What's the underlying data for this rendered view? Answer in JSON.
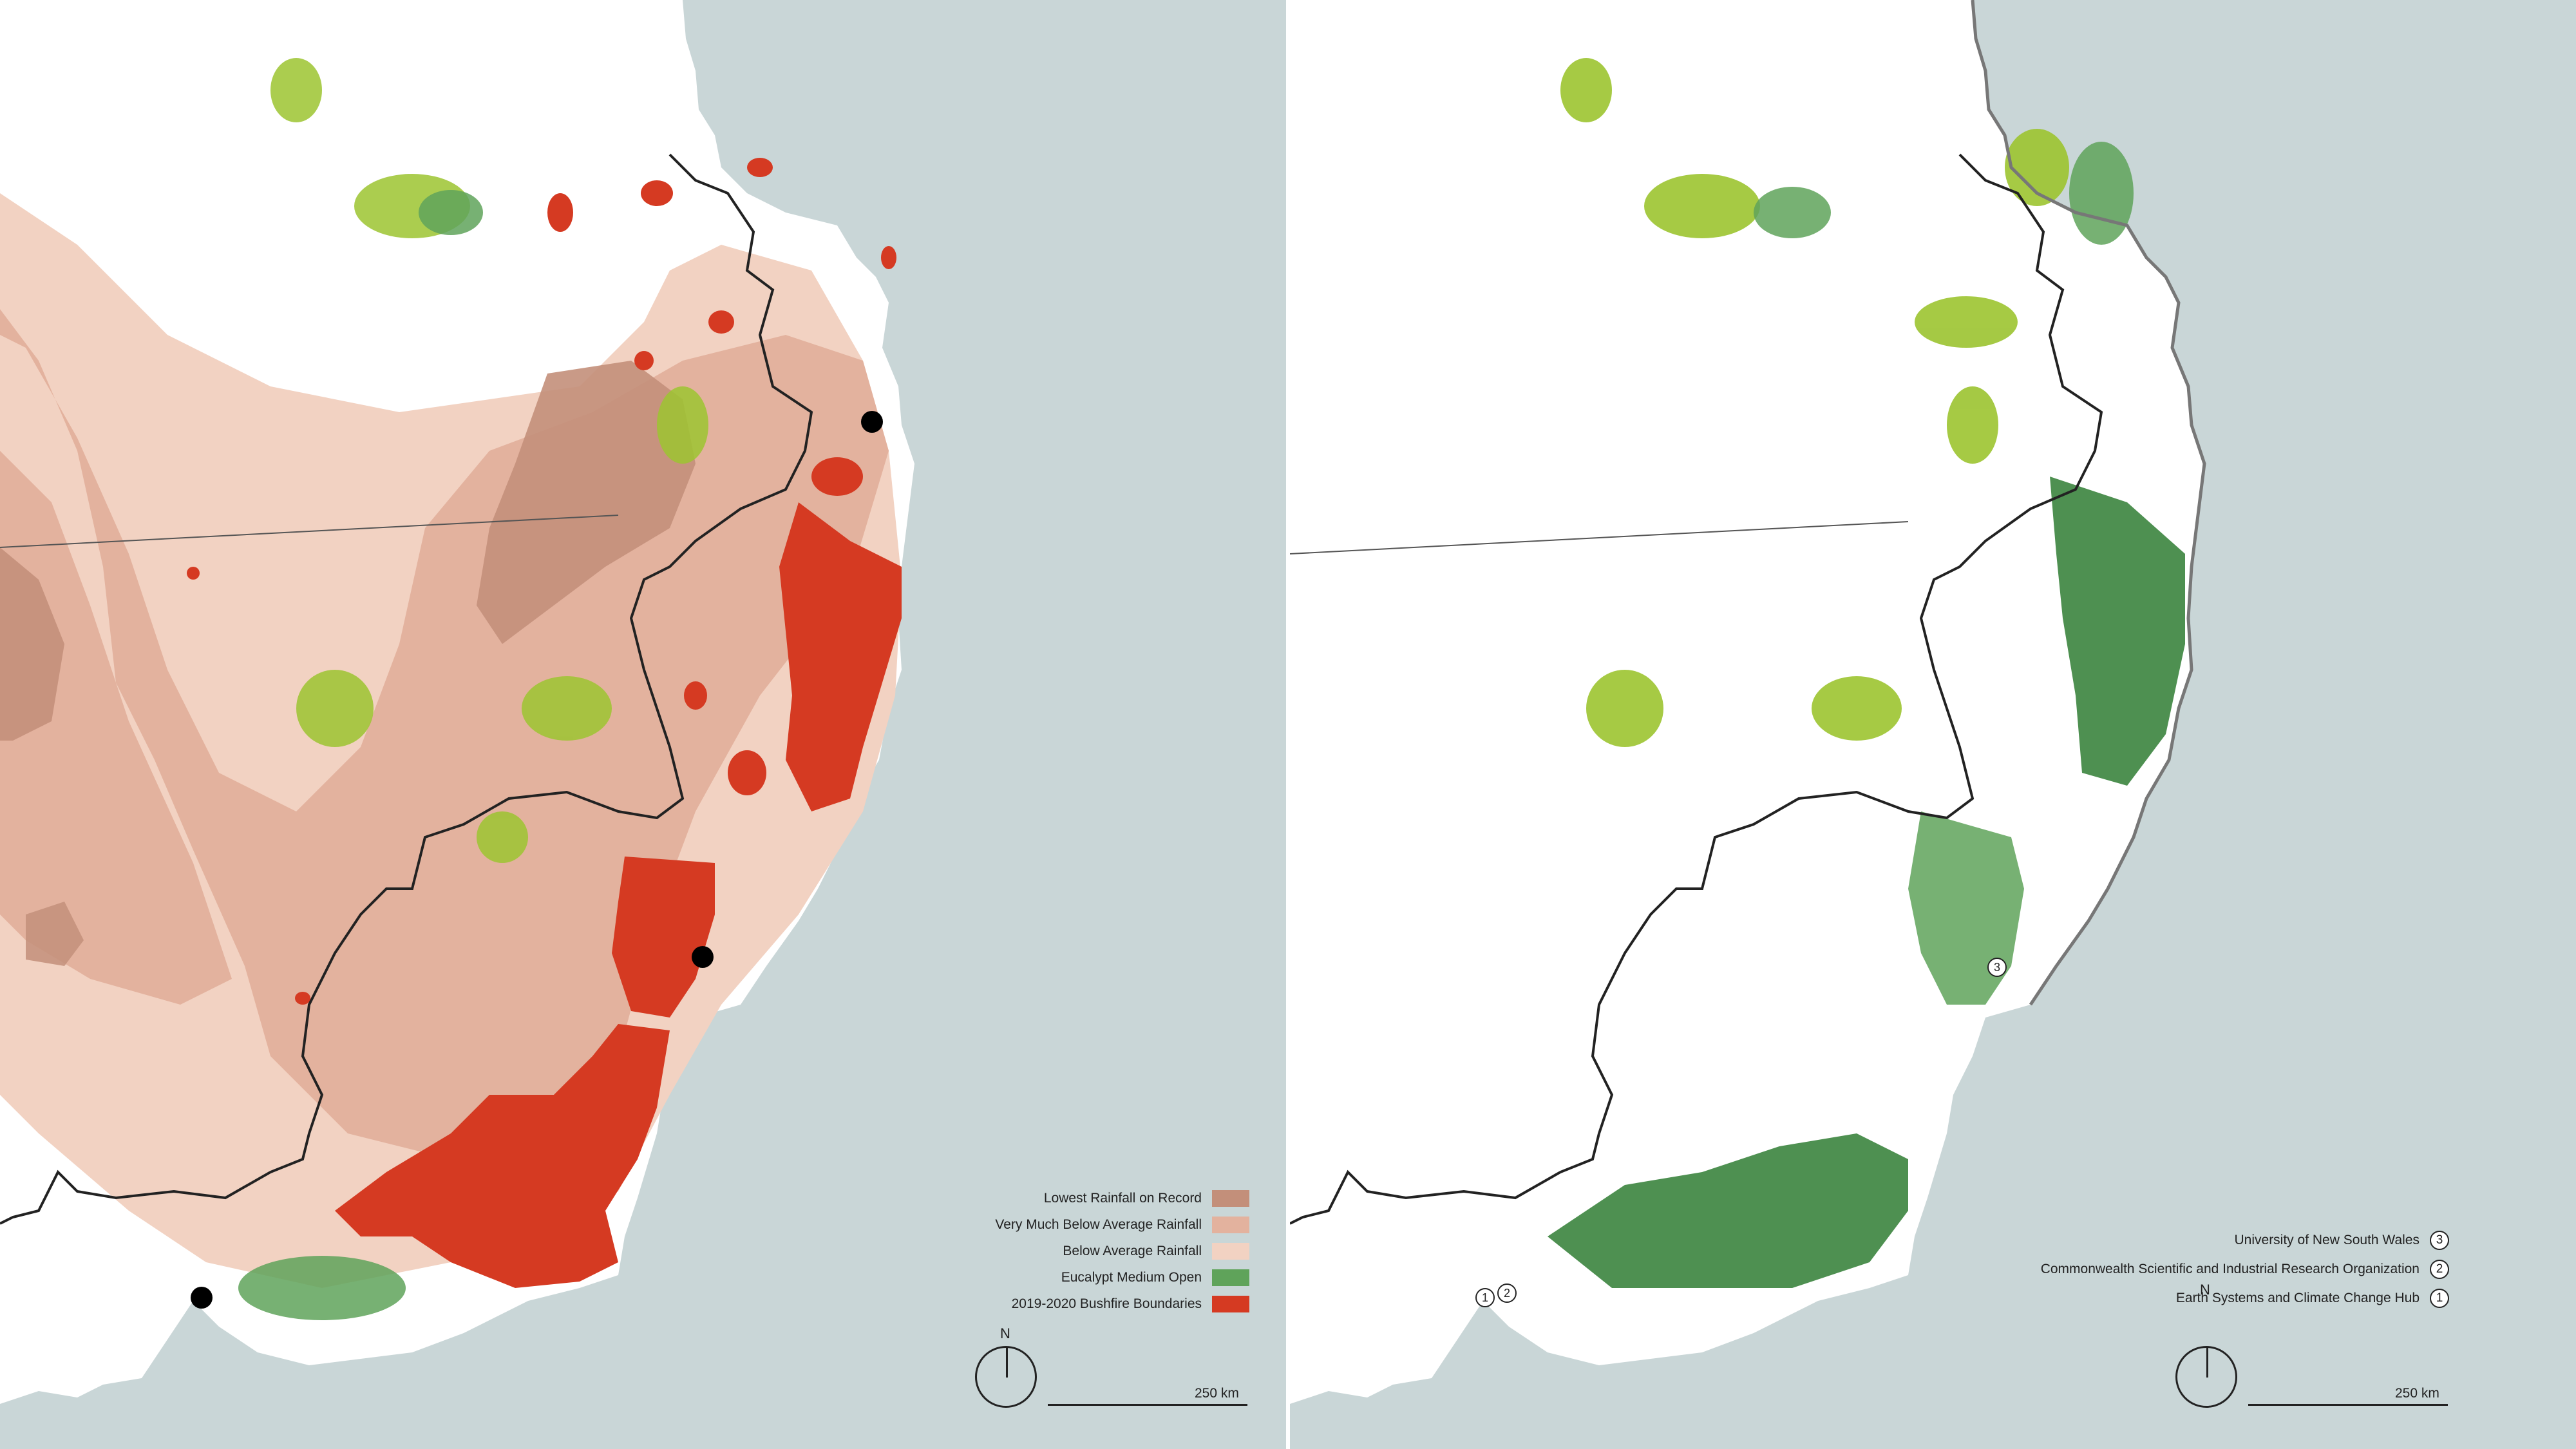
{
  "left_map": {
    "legend": [
      {
        "label": "Lowest Rainfall on Record",
        "color": "#c38f7a"
      },
      {
        "label": "Very Much Below Average Rainfall",
        "color": "#e3b29e"
      },
      {
        "label": "Below Average Rainfall",
        "color": "#f2d2c2"
      },
      {
        "label": "Eucalypt Medium Open",
        "color": "#5fa35a"
      },
      {
        "label": "2019-2020 Bushfire Boundaries",
        "color": "#d53a22"
      }
    ],
    "north_label": "N",
    "scale_label": "250 km"
  },
  "right_map": {
    "legend": [
      {
        "label": "University of New South Wales",
        "number": "3"
      },
      {
        "label": "Commonwealth Scientific and Industrial Research Organization",
        "number": "2"
      },
      {
        "label": "Earth Systems and Climate Change Hub",
        "number": "1"
      }
    ],
    "north_label": "N",
    "scale_label": "250 km"
  },
  "colors": {
    "ocean": "#c9d6d7",
    "land": "#ffffff",
    "vegetation_light": "#9cc430",
    "vegetation_mid": "#5fa35a",
    "vegetation_dark": "#2f7d33",
    "fire": "#d53a22"
  }
}
